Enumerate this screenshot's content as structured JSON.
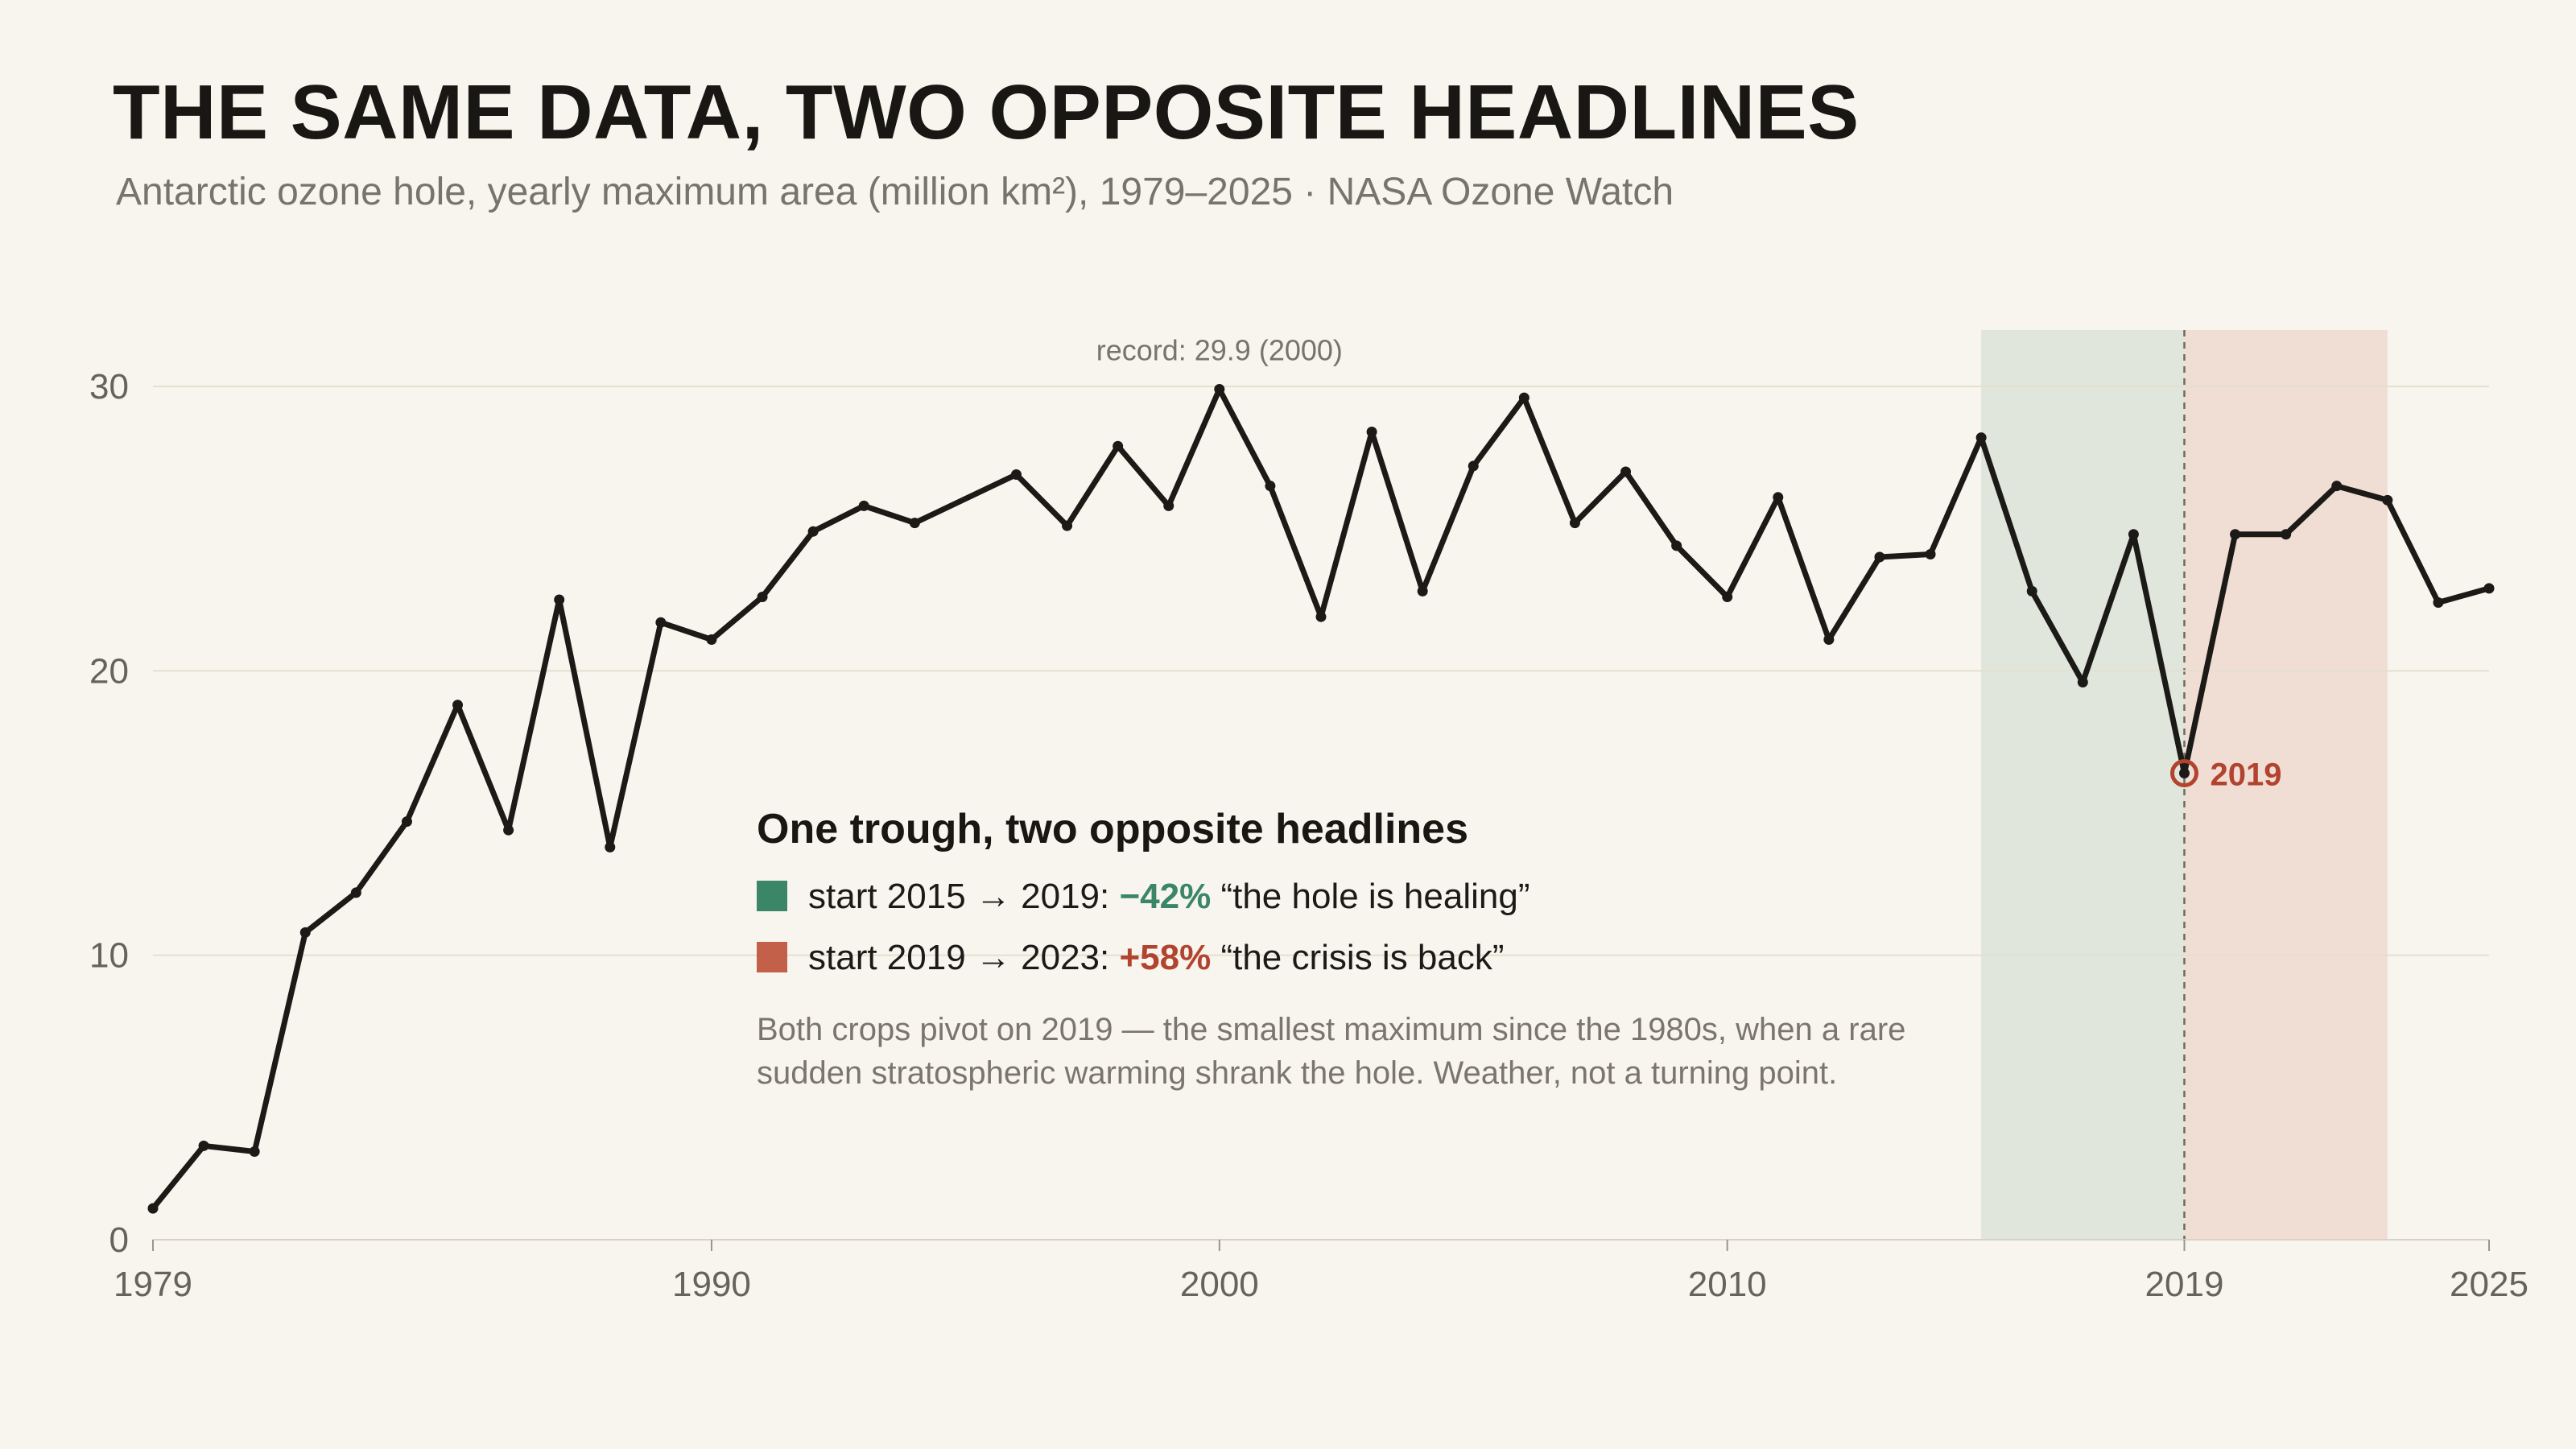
{
  "header": {
    "title": "THE SAME DATA, TWO OPPOSITE HEADLINES",
    "subtitle": "Antarctic ozone hole, yearly maximum area (million km²), 1979–2025 · NASA Ozone Watch"
  },
  "colors": {
    "background": "#f8f5ee",
    "line": "#1c1a17",
    "healing": "#3a8667",
    "crisis": "#c2604a",
    "pivot": "#b2432f"
  },
  "chart_data": {
    "type": "line",
    "title": "THE SAME DATA, TWO OPPOSITE HEADLINES",
    "xlabel": "",
    "ylabel": "",
    "xlim": [
      1979,
      2025
    ],
    "ylim": [
      0,
      32
    ],
    "x_ticks": [
      1979,
      1990,
      2000,
      2010,
      2019,
      2025
    ],
    "y_ticks": [
      0,
      10,
      20,
      30
    ],
    "grid": true,
    "series": [
      {
        "x": [
          1979,
          1980,
          1981,
          1982,
          1983,
          1984,
          1985,
          1986,
          1987,
          1988,
          1989,
          1990,
          1991,
          1992,
          1993,
          1994,
          1996,
          1997,
          1998,
          1999,
          2000,
          2001,
          2002,
          2003,
          2004,
          2005,
          2006,
          2007,
          2008,
          2009,
          2010,
          2011,
          2012,
          2013,
          2014,
          2015,
          2016,
          2017,
          2018,
          2019,
          2020,
          2021,
          2022,
          2023,
          2024,
          2025
        ],
        "values": [
          1.1,
          3.3,
          3.1,
          10.8,
          12.2,
          14.7,
          18.8,
          14.4,
          22.5,
          13.8,
          21.7,
          21.1,
          22.6,
          24.9,
          25.8,
          25.2,
          26.9,
          25.1,
          27.9,
          25.8,
          29.9,
          26.5,
          21.9,
          28.4,
          22.8,
          27.2,
          29.6,
          25.2,
          27.0,
          24.4,
          22.6,
          26.1,
          21.1,
          24.0,
          24.1,
          28.2,
          22.8,
          19.6,
          24.8,
          16.4,
          24.8,
          24.8,
          26.5,
          26.0,
          22.4,
          22.9
        ]
      }
    ],
    "highlight_ranges": [
      {
        "from": 2015,
        "to": 2019,
        "color": "#3a8667"
      },
      {
        "from": 2019,
        "to": 2023,
        "color": "#c2604a"
      }
    ],
    "pivot": {
      "year": 2019,
      "label": "2019"
    },
    "record_annotation": {
      "year": 2000,
      "value": 29.9,
      "label": "record: 29.9 (2000)"
    }
  },
  "annotation": {
    "heading": "One trough, two opposite headlines",
    "rows": [
      {
        "prefix": "start 2015 → 2019: ",
        "change": "−42%",
        "quote": " “the hole is healing”",
        "color": "#3a8667"
      },
      {
        "prefix": "start 2019 → 2023: ",
        "change": "+58%",
        "quote": " “the crisis is back”",
        "color": "#c2604a"
      }
    ],
    "note_lines": [
      "Both crops pivot on 2019 — the smallest maximum since the 1980s, when a rare",
      "sudden stratospheric warming shrank the hole. Weather, not a turning point."
    ]
  }
}
